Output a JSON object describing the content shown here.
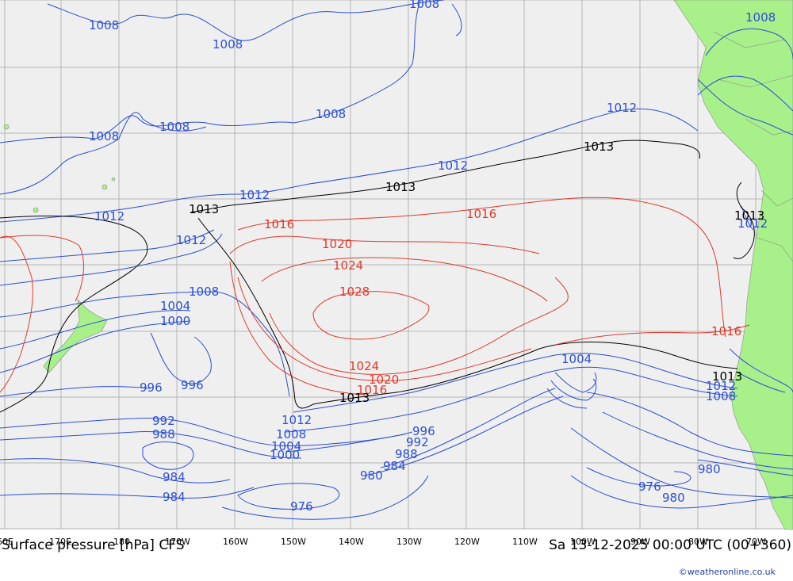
{
  "title": "Surface pressure [hPa] CFS",
  "valid_time": "Sa 13-12-2025 00:00 UTC (00+360)",
  "credit": "©weatheronline.co.uk",
  "colors": {
    "ocean": "#efefef",
    "land": "#a8f08a",
    "grid": "#b4b4b4",
    "low_isobar": "#2a4fd6",
    "standard_isobar": "#000000",
    "high_isobar": "#e03a2a"
  },
  "longitude_labels": [
    "60E",
    "170E",
    "180",
    "170W",
    "160W",
    "150W",
    "140W",
    "130W",
    "120W",
    "110W",
    "100W",
    "90W",
    "80W",
    "70W"
  ],
  "isobar_labels": [
    {
      "value": "1008",
      "class": "low"
    },
    {
      "value": "1008",
      "class": "low"
    },
    {
      "value": "1008",
      "class": "low"
    },
    {
      "value": "1008",
      "class": "low"
    },
    {
      "value": "1008",
      "class": "low"
    },
    {
      "value": "1008",
      "class": "low"
    },
    {
      "value": "1008",
      "class": "low"
    },
    {
      "value": "1012",
      "class": "low"
    },
    {
      "value": "1012",
      "class": "low"
    },
    {
      "value": "1012",
      "class": "low"
    },
    {
      "value": "1012",
      "class": "low"
    },
    {
      "value": "1012",
      "class": "low"
    },
    {
      "value": "1013",
      "class": "std"
    },
    {
      "value": "1013",
      "class": "std"
    },
    {
      "value": "1013",
      "class": "std"
    },
    {
      "value": "1013",
      "class": "std"
    },
    {
      "value": "1016",
      "class": "high"
    },
    {
      "value": "1016",
      "class": "high"
    },
    {
      "value": "1020",
      "class": "high"
    },
    {
      "value": "1024",
      "class": "high"
    },
    {
      "value": "1028",
      "class": "high"
    },
    {
      "value": "1024",
      "class": "high"
    },
    {
      "value": "1020",
      "class": "high"
    },
    {
      "value": "1016",
      "class": "high"
    },
    {
      "value": "1013",
      "class": "std"
    },
    {
      "value": "1016",
      "class": "high"
    },
    {
      "value": "1013",
      "class": "std"
    },
    {
      "value": "1008",
      "class": "low"
    },
    {
      "value": "1004",
      "class": "low"
    },
    {
      "value": "1000",
      "class": "low"
    },
    {
      "value": "996",
      "class": "low"
    },
    {
      "value": "996",
      "class": "low"
    },
    {
      "value": "992",
      "class": "low"
    },
    {
      "value": "988",
      "class": "low"
    },
    {
      "value": "984",
      "class": "low"
    },
    {
      "value": "984",
      "class": "low"
    },
    {
      "value": "1012",
      "class": "low"
    },
    {
      "value": "1008",
      "class": "low"
    },
    {
      "value": "1004",
      "class": "low"
    },
    {
      "value": "1000",
      "class": "low"
    },
    {
      "value": "996",
      "class": "low"
    },
    {
      "value": "992",
      "class": "low"
    },
    {
      "value": "988",
      "class": "low"
    },
    {
      "value": "984",
      "class": "low"
    },
    {
      "value": "980",
      "class": "low"
    },
    {
      "value": "976",
      "class": "low"
    },
    {
      "value": "1004",
      "class": "low"
    },
    {
      "value": "1012",
      "class": "low"
    },
    {
      "value": "1008",
      "class": "low"
    },
    {
      "value": "980",
      "class": "low"
    },
    {
      "value": "976",
      "class": "low"
    },
    {
      "value": "980",
      "class": "low"
    },
    {
      "value": "1012",
      "class": "low"
    }
  ]
}
